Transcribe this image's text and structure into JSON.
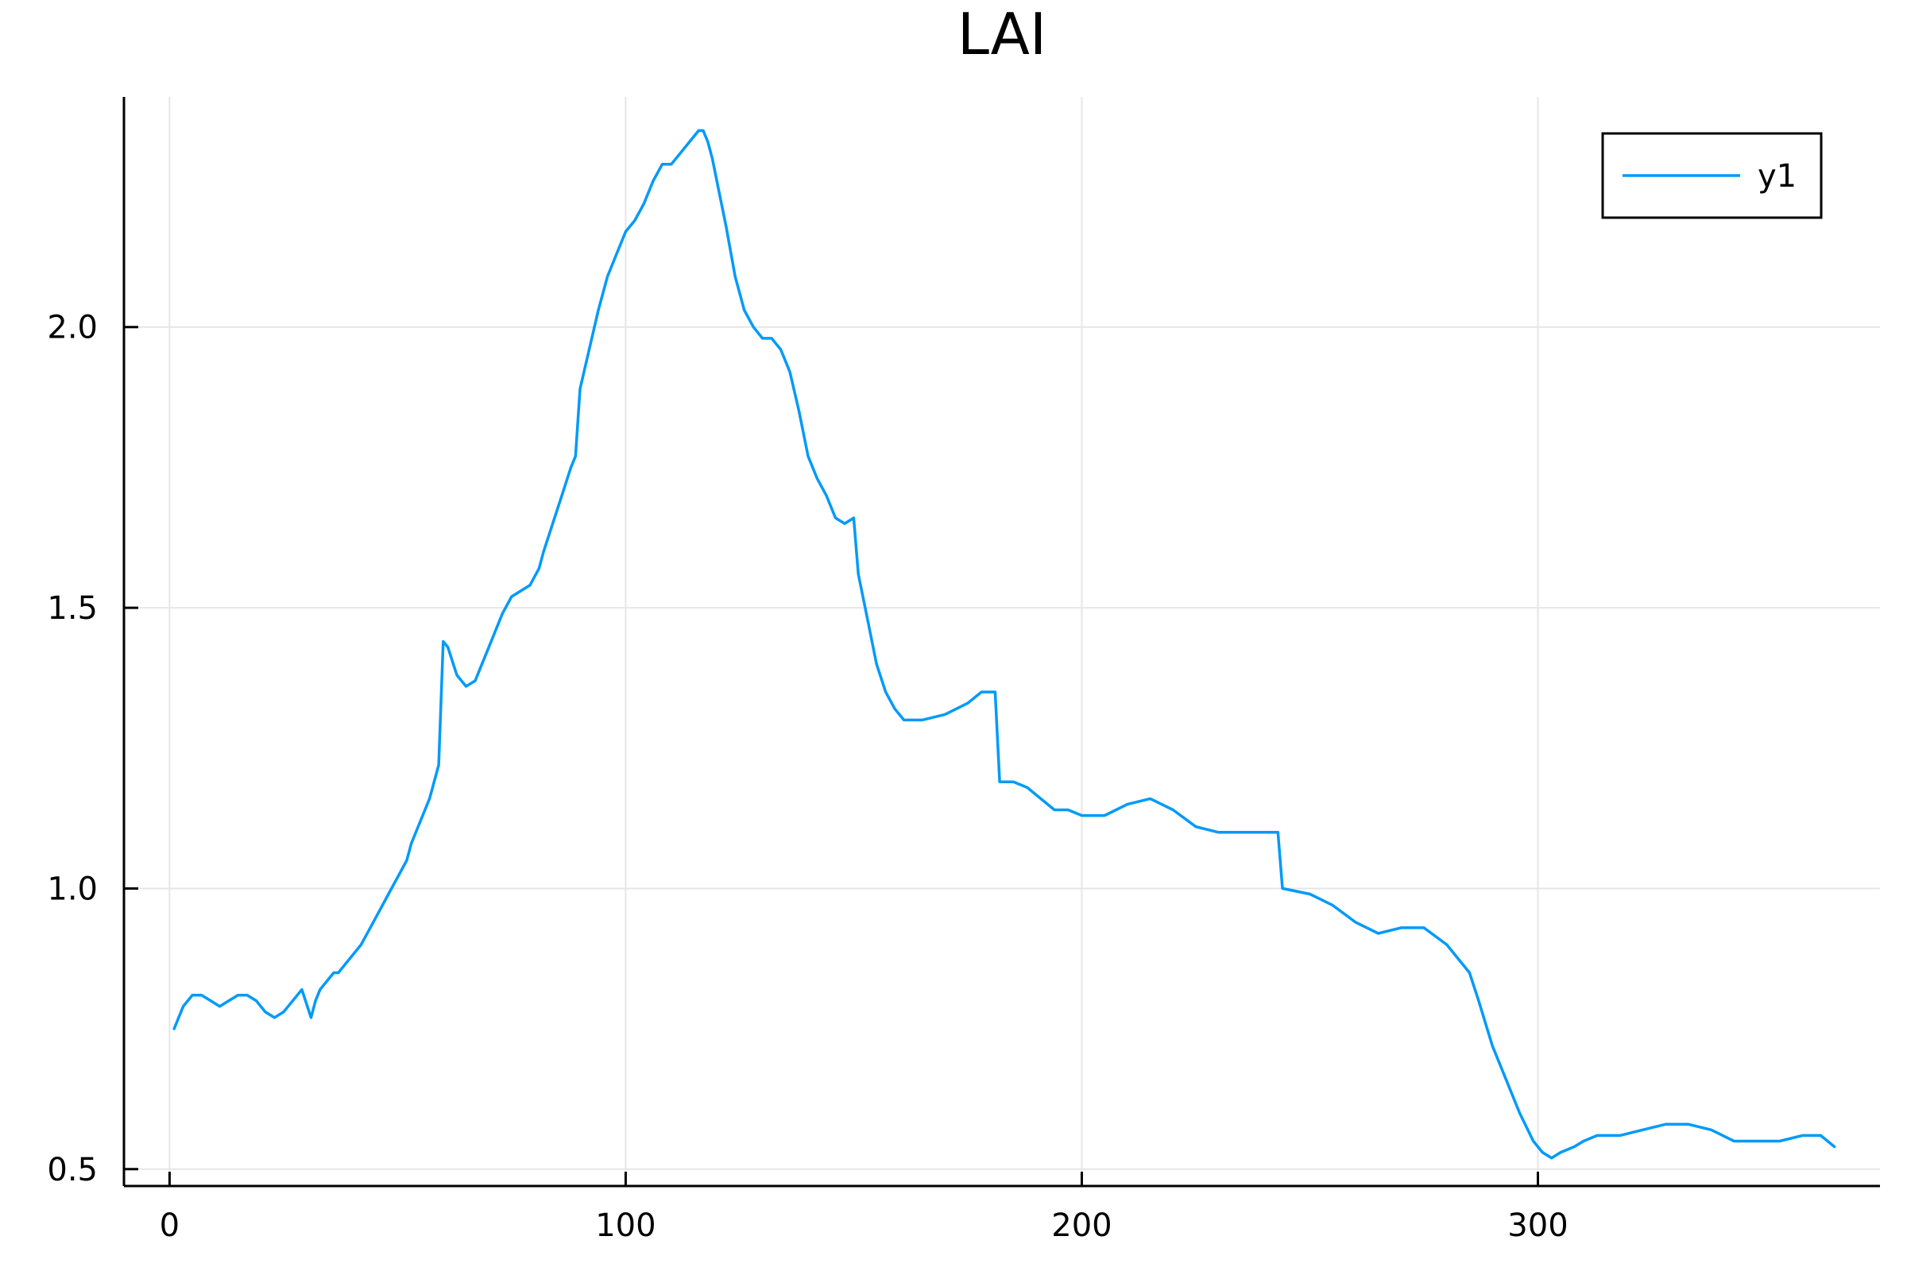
{
  "chart_data": {
    "type": "line",
    "title": "LAI",
    "xlabel": "",
    "ylabel": "",
    "xlim": [
      -10,
      375
    ],
    "ylim": [
      0.47,
      2.41
    ],
    "xticks": [
      0,
      100,
      200,
      300
    ],
    "xtick_labels": [
      "0",
      "100",
      "200",
      "300"
    ],
    "yticks": [
      0.5,
      1.0,
      1.5,
      2.0
    ],
    "ytick_labels": [
      "0.5",
      "1.0",
      "1.5",
      "2.0"
    ],
    "grid": true,
    "legend_position": "top-right",
    "series": [
      {
        "name": "y1",
        "color": "#009af9",
        "x": [
          1,
          3,
          5,
          7,
          9,
          11,
          13,
          15,
          17,
          19,
          21,
          23,
          25,
          27,
          29,
          31,
          32,
          33,
          35,
          36,
          37,
          39,
          40,
          42,
          44,
          46,
          48,
          50,
          52,
          53,
          55,
          57,
          59,
          60,
          61,
          63,
          65,
          67,
          69,
          71,
          73,
          75,
          77,
          79,
          81,
          82,
          84,
          86,
          88,
          89,
          90,
          92,
          94,
          96,
          98,
          100,
          102,
          104,
          106,
          108,
          110,
          112,
          114,
          116,
          117,
          118,
          119,
          120,
          122,
          124,
          126,
          128,
          129,
          130,
          132,
          134,
          136,
          138,
          140,
          142,
          144,
          146,
          148,
          150,
          151,
          153,
          155,
          157,
          159,
          161,
          165,
          170,
          175,
          178,
          180,
          181,
          182,
          185,
          188,
          191,
          194,
          197,
          200,
          205,
          210,
          215,
          220,
          225,
          230,
          235,
          240,
          243,
          244,
          250,
          255,
          260,
          265,
          270,
          275,
          280,
          285,
          287,
          290,
          293,
          296,
          299,
          301,
          303,
          305,
          308,
          310,
          313,
          318,
          323,
          328,
          333,
          338,
          343,
          348,
          353,
          358,
          360,
          362,
          365
        ],
        "y": [
          0.75,
          0.79,
          0.81,
          0.81,
          0.8,
          0.79,
          0.8,
          0.81,
          0.81,
          0.8,
          0.78,
          0.77,
          0.78,
          0.8,
          0.82,
          0.77,
          0.8,
          0.82,
          0.84,
          0.85,
          0.85,
          0.87,
          0.88,
          0.9,
          0.93,
          0.96,
          0.99,
          1.02,
          1.05,
          1.08,
          1.12,
          1.16,
          1.22,
          1.44,
          1.43,
          1.38,
          1.36,
          1.37,
          1.41,
          1.45,
          1.49,
          1.52,
          1.53,
          1.54,
          1.57,
          1.6,
          1.65,
          1.7,
          1.75,
          1.77,
          1.89,
          1.96,
          2.03,
          2.09,
          2.13,
          2.17,
          2.19,
          2.22,
          2.26,
          2.29,
          2.29,
          2.31,
          2.33,
          2.35,
          2.35,
          2.33,
          2.3,
          2.26,
          2.18,
          2.09,
          2.03,
          2.0,
          1.99,
          1.98,
          1.98,
          1.96,
          1.92,
          1.85,
          1.77,
          1.73,
          1.7,
          1.66,
          1.65,
          1.66,
          1.56,
          1.48,
          1.4,
          1.35,
          1.32,
          1.3,
          1.3,
          1.31,
          1.33,
          1.35,
          1.35,
          1.35,
          1.19,
          1.19,
          1.18,
          1.16,
          1.14,
          1.14,
          1.13,
          1.13,
          1.15,
          1.16,
          1.14,
          1.11,
          1.1,
          1.1,
          1.1,
          1.1,
          1.0,
          0.99,
          0.97,
          0.94,
          0.92,
          0.93,
          0.93,
          0.9,
          0.85,
          0.8,
          0.72,
          0.66,
          0.6,
          0.55,
          0.53,
          0.52,
          0.53,
          0.54,
          0.55,
          0.56,
          0.56,
          0.57,
          0.58,
          0.58,
          0.57,
          0.55,
          0.55,
          0.55,
          0.56,
          0.56,
          0.56,
          0.54
        ]
      }
    ]
  }
}
